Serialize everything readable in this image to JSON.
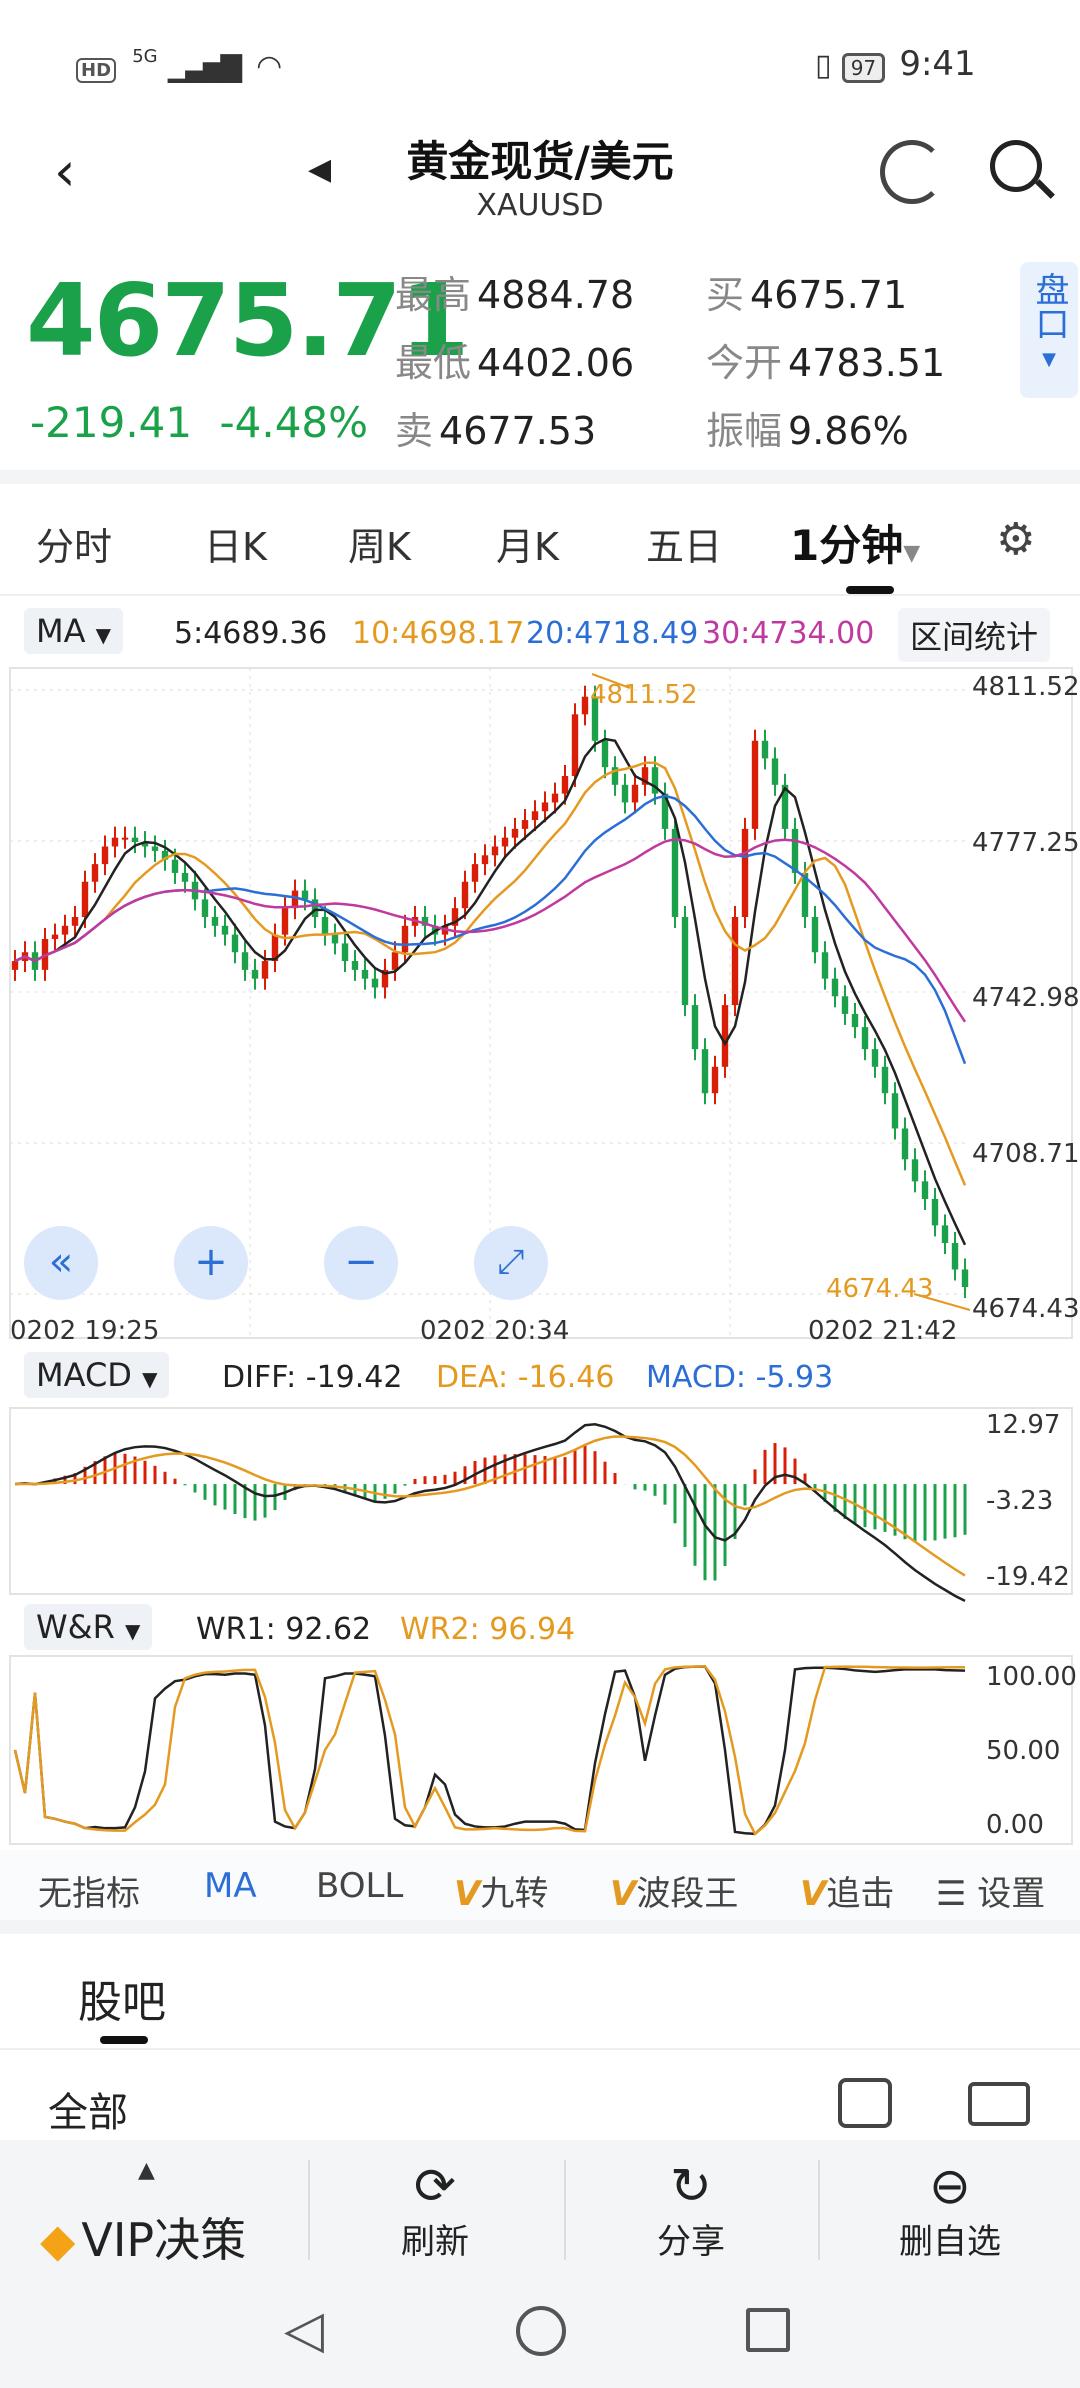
{
  "status": {
    "left_icons": [
      "hd-icon",
      "signal-5g-icon",
      "wifi-icon"
    ],
    "hd": "HD",
    "net": "5G",
    "battery": "97",
    "time": "9:41"
  },
  "header": {
    "title": "黄金现货/美元",
    "symbol": "XAUUSD"
  },
  "quote": {
    "price": "4675.71",
    "change": "-219.41",
    "change_pct": "-4.48%",
    "high_label": "最高",
    "high": "4884.78",
    "low_label": "最低",
    "low": "4402.06",
    "sell_label": "卖",
    "sell": "4677.53",
    "buy_label": "买",
    "buy": "4675.71",
    "open_label": "今开",
    "open": "4783.51",
    "amp_label": "振幅",
    "amp": "9.86%",
    "pankou": "盘口"
  },
  "periods": [
    "分时",
    "日K",
    "周K",
    "月K",
    "五日",
    "1分钟"
  ],
  "active_period": "1分钟",
  "ma": {
    "selector": "MA",
    "ma5": "5:4689.36",
    "ma10": "10:4698.17",
    "ma20": "20:4718.49",
    "ma30": "30:4734.00",
    "range_stats": "区间统计"
  },
  "colors": {
    "up": "#d81e06",
    "down": "#1aa149",
    "ma5": "#222222",
    "ma10": "#e49a20",
    "ma20": "#2b6fd6",
    "ma30": "#c0399e",
    "accent": "#2b6fd6"
  },
  "chart_data": [
    {
      "type": "candlestick",
      "title": "MA",
      "y_ticks": [
        "4811.52",
        "4777.25",
        "4742.98",
        "4708.71",
        "4674.43"
      ],
      "ylim": [
        4674.43,
        4811.52
      ],
      "x_ticks": [
        "0202  19:25",
        "0202  20:34",
        "0202  21:42"
      ],
      "max_label": "4811.52",
      "min_label": "4674.43",
      "series_closes": [
        4750,
        4752,
        4748,
        4755,
        4756,
        4758,
        4760,
        4768,
        4772,
        4776,
        4778,
        4778,
        4777,
        4776,
        4775,
        4773,
        4770,
        4768,
        4764,
        4760,
        4758,
        4756,
        4752,
        4748,
        4746,
        4750,
        4756,
        4762,
        4766,
        4764,
        4760,
        4756,
        4754,
        4750,
        4748,
        4746,
        4744,
        4748,
        4752,
        4758,
        4760,
        4758,
        4756,
        4758,
        4762,
        4768,
        4772,
        4774,
        4776,
        4778,
        4780,
        4782,
        4784,
        4786,
        4788,
        4792,
        4806,
        4810,
        4800,
        4794,
        4790,
        4786,
        4790,
        4794,
        4788,
        4780,
        4760,
        4740,
        4730,
        4720,
        4726,
        4740,
        4760,
        4780,
        4800,
        4796,
        4790,
        4780,
        4770,
        4760,
        4752,
        4746,
        4742,
        4738,
        4735,
        4730,
        4726,
        4720,
        4712,
        4705,
        4700,
        4696,
        4690,
        4686,
        4680,
        4676
      ]
    },
    {
      "type": "line",
      "title": "MACD",
      "legend": {
        "diff": "DIFF: -19.42",
        "dea": "DEA: -16.46",
        "macd": "MACD: -5.93"
      },
      "y_ticks": [
        "12.97",
        "-3.23",
        "-19.42"
      ],
      "ylim": [
        -19.42,
        12.97
      ]
    },
    {
      "type": "line",
      "title": "W&R",
      "legend": {
        "wr1": "WR1: 92.62",
        "wr2": "WR2: 96.94"
      },
      "y_ticks": [
        "100.00",
        "50.00",
        "0.00"
      ],
      "ylim": [
        0,
        100
      ]
    }
  ],
  "indicators": [
    "无指标",
    "MA",
    "BOLL",
    "九转",
    "波段王",
    "追击",
    "设置"
  ],
  "active_indicator": "MA",
  "guba": {
    "title": "股吧",
    "filter": "全部"
  },
  "bottom_nav": {
    "vip": "VIP决策",
    "refresh": "刷新",
    "share": "分享",
    "remove": "删自选"
  }
}
